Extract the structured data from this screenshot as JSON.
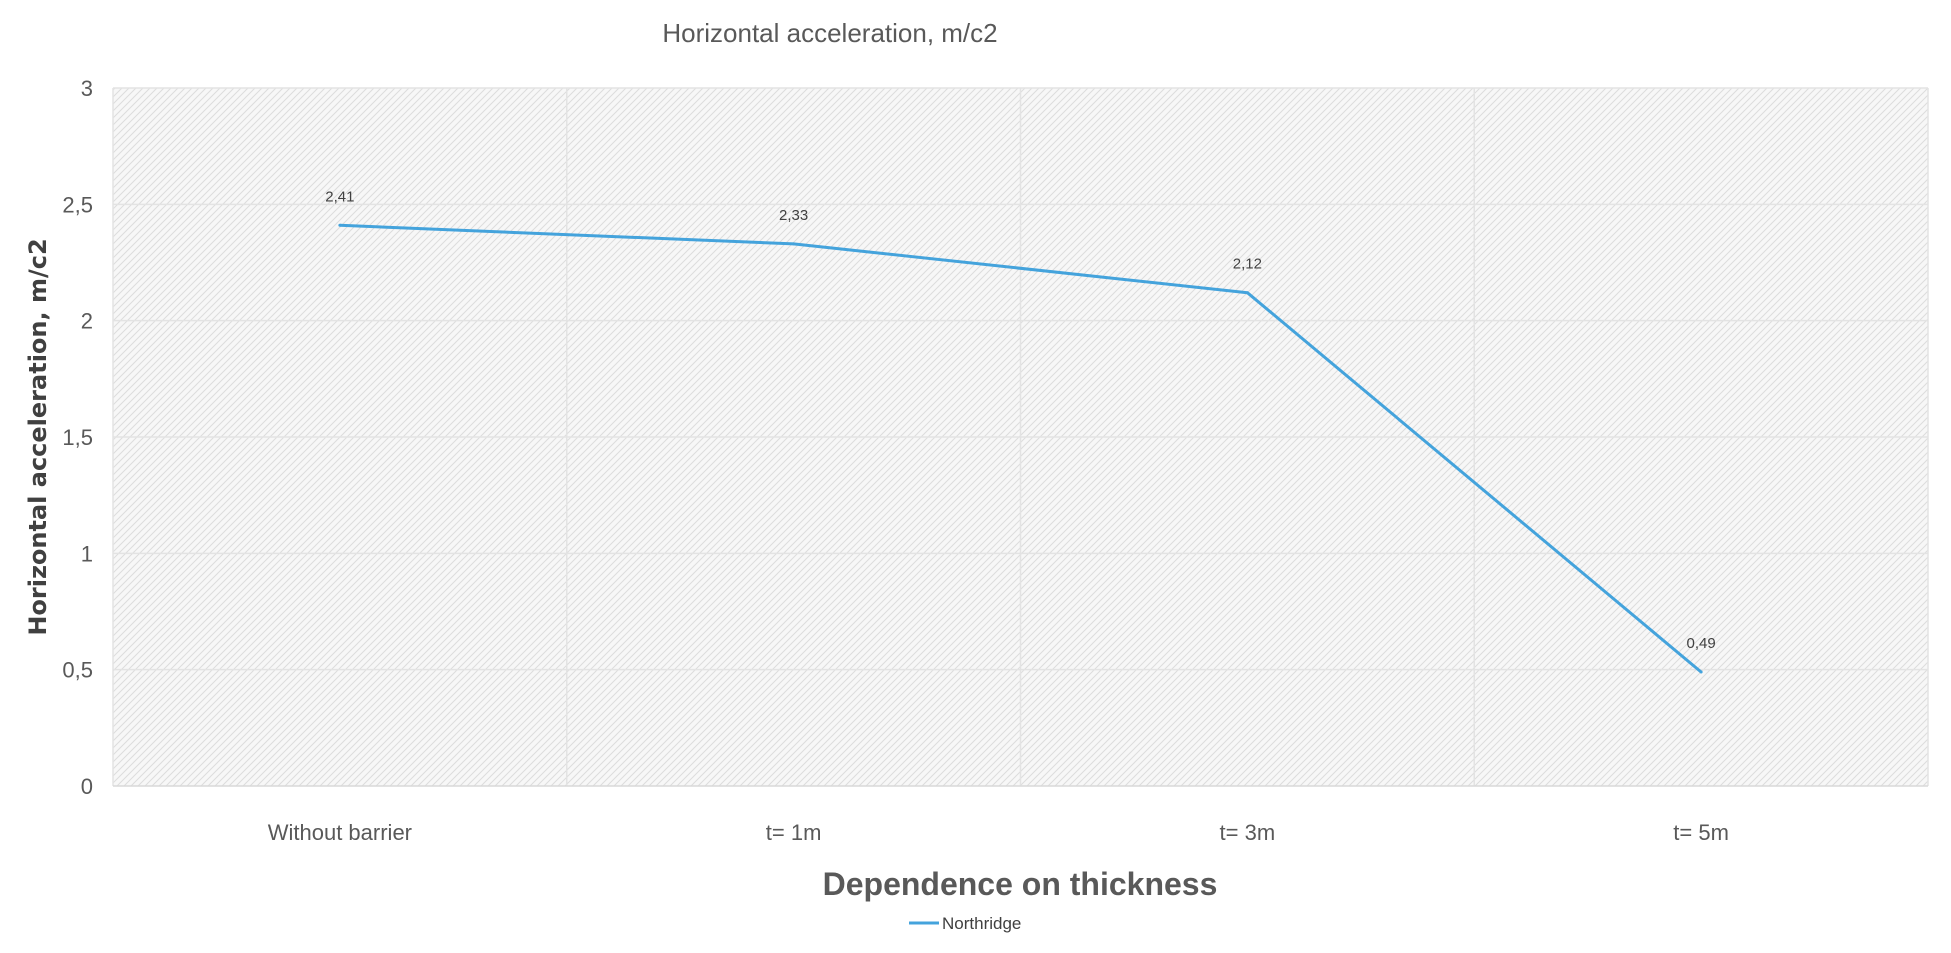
{
  "chart_data": {
    "type": "line",
    "title": "Horizontal acceleration, m/c2",
    "xlabel": "Dependence on thickness",
    "ylabel": "Horizontal acceleration, m/c2",
    "categories": [
      "Without barrier",
      "t= 1m",
      "t= 3m",
      "t= 5m"
    ],
    "series": [
      {
        "name": "Northridge",
        "values": [
          2.41,
          2.33,
          2.12,
          0.49
        ],
        "labels": [
          "2,41",
          "2,33",
          "2,12",
          "0,49"
        ],
        "color": "#44a3dc"
      }
    ],
    "ylim": [
      0,
      3
    ],
    "yticks": [
      0,
      0.5,
      1,
      1.5,
      2,
      2.5,
      3
    ],
    "ytick_labels": [
      "0",
      "0,5",
      "1",
      "1,5",
      "2",
      "2,5",
      "3"
    ],
    "grid": true,
    "legend_position": "bottom"
  }
}
